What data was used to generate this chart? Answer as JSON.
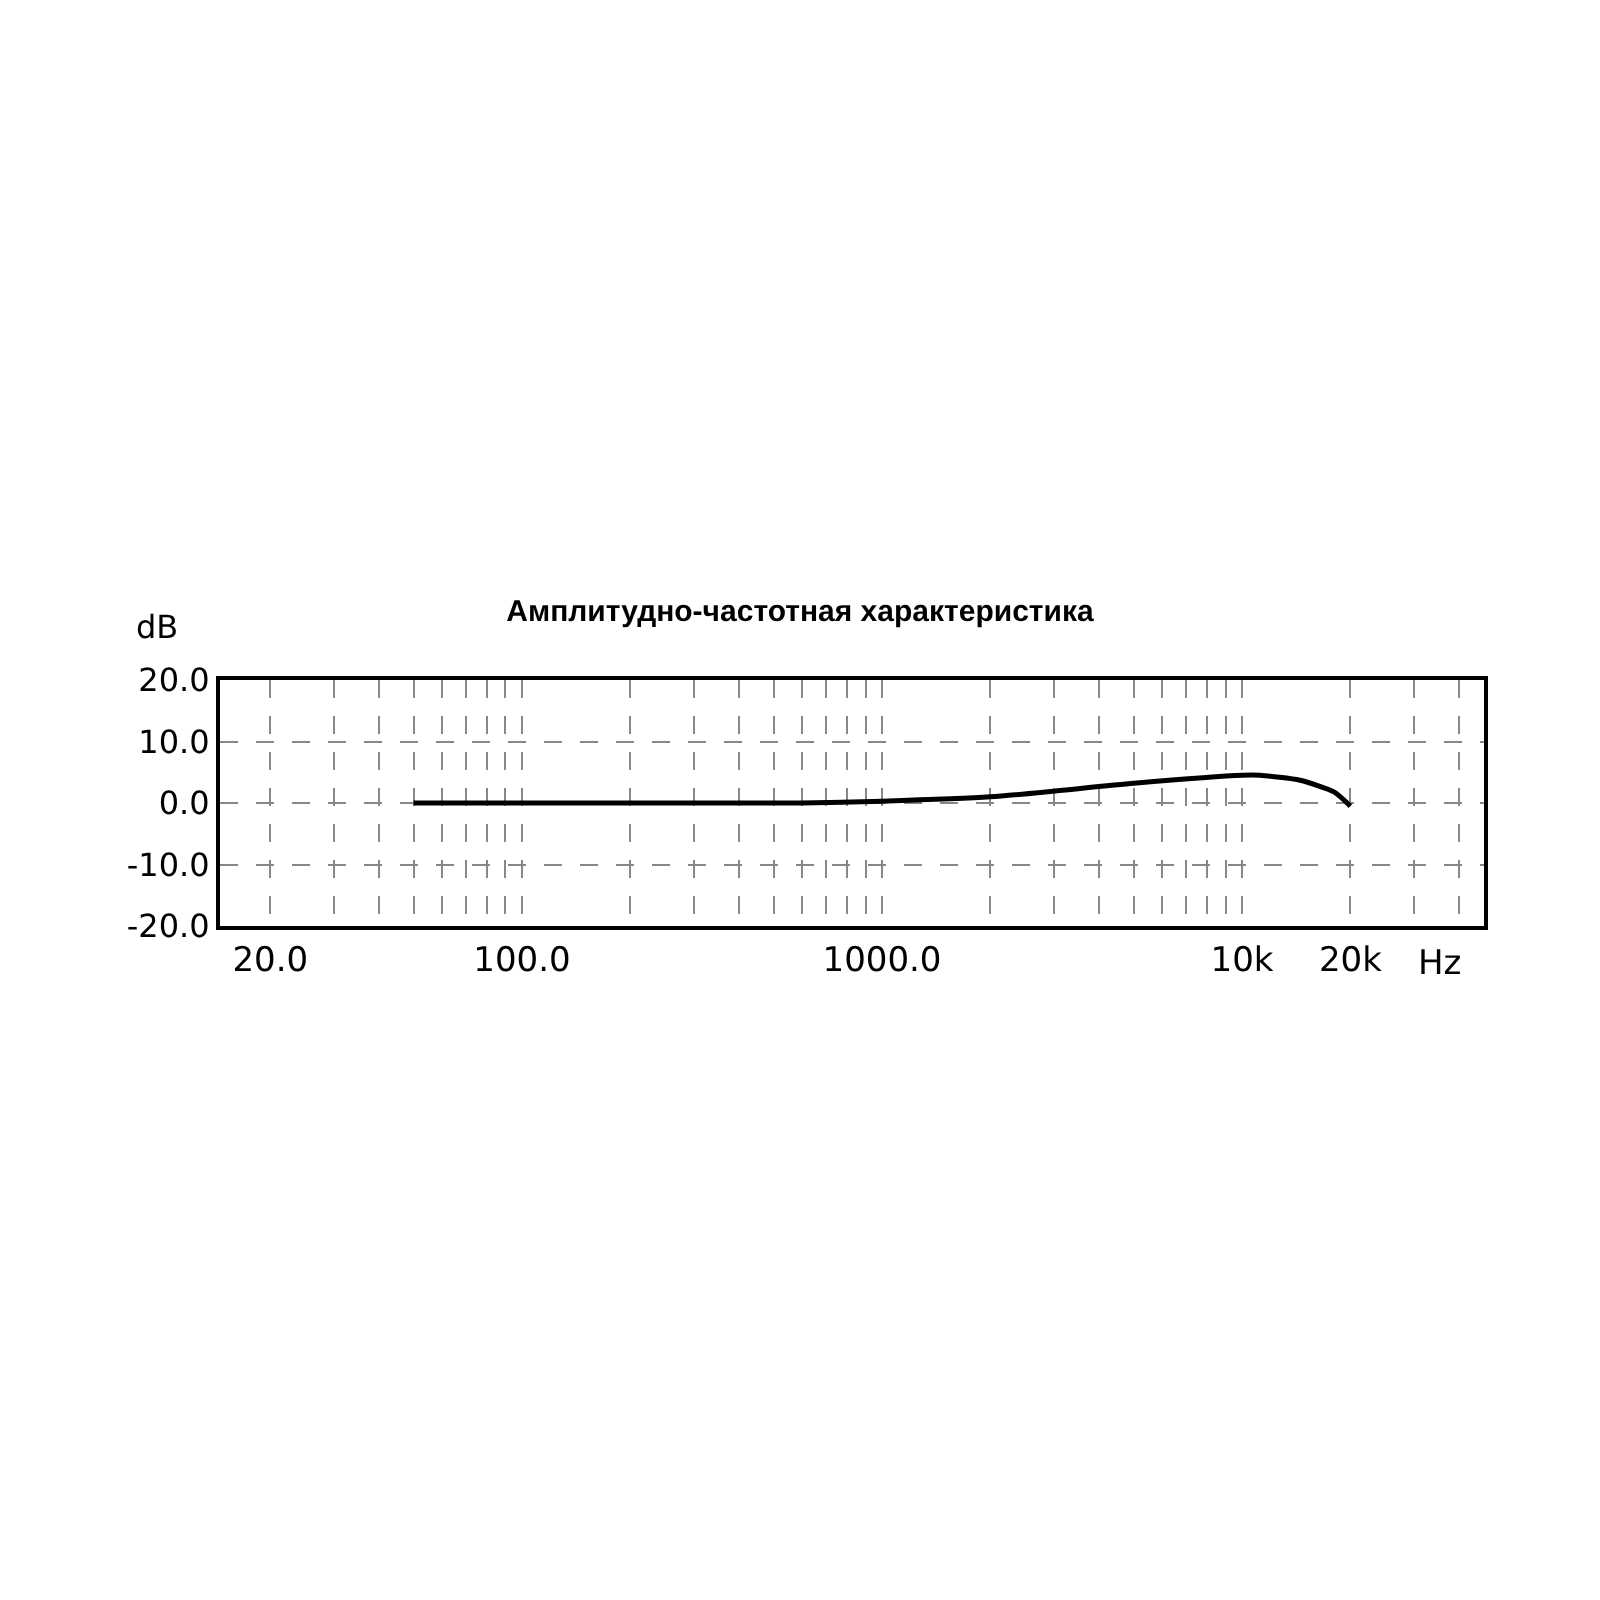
{
  "chart_data": {
    "type": "line",
    "title": "Амплитудно-частотная характеристика",
    "xlabel": "Hz",
    "ylabel": "dB",
    "x": [
      50,
      100,
      300,
      600,
      1000,
      2000,
      5000,
      10000,
      11200,
      14500,
      18000,
      20000
    ],
    "series": [
      {
        "color": "#000000",
        "values": [
          0,
          0,
          0,
          0,
          0.3,
          1.0,
          3.2,
          4.5,
          4.5,
          3.7,
          1.8,
          -0.5
        ]
      }
    ],
    "log": "x",
    "xlim": [
      14.5,
      47000
    ],
    "ylim": [
      -20,
      20
    ],
    "xticks": [
      {
        "value": 20,
        "label": "20.0"
      },
      {
        "value": 30,
        "label": null
      },
      {
        "value": 40,
        "label": null
      },
      {
        "value": 50,
        "label": null
      },
      {
        "value": 60,
        "label": null
      },
      {
        "value": 70,
        "label": null
      },
      {
        "value": 80,
        "label": null
      },
      {
        "value": 90,
        "label": null
      },
      {
        "value": 100,
        "label": "100.0"
      },
      {
        "value": 200,
        "label": null
      },
      {
        "value": 300,
        "label": null
      },
      {
        "value": 400,
        "label": null
      },
      {
        "value": 500,
        "label": null
      },
      {
        "value": 600,
        "label": null
      },
      {
        "value": 700,
        "label": null
      },
      {
        "value": 800,
        "label": null
      },
      {
        "value": 900,
        "label": null
      },
      {
        "value": 1000,
        "label": "1000.0"
      },
      {
        "value": 2000,
        "label": null
      },
      {
        "value": 3000,
        "label": null
      },
      {
        "value": 4000,
        "label": null
      },
      {
        "value": 5000,
        "label": null
      },
      {
        "value": 6000,
        "label": null
      },
      {
        "value": 7000,
        "label": null
      },
      {
        "value": 8000,
        "label": null
      },
      {
        "value": 9000,
        "label": null
      },
      {
        "value": 10000,
        "label": "10k"
      },
      {
        "value": 20000,
        "label": "20k"
      },
      {
        "value": 30000,
        "label": null
      },
      {
        "value": 40000,
        "label": null
      }
    ],
    "yticks": [
      {
        "value": -20,
        "label": "-20.0"
      },
      {
        "value": -10,
        "label": "-10.0"
      },
      {
        "value": 0,
        "label": "0.0"
      },
      {
        "value": 10,
        "label": "10.0"
      },
      {
        "value": 20,
        "label": "20.0"
      }
    ],
    "grid": true,
    "line_style": "solid",
    "marker": "none"
  }
}
